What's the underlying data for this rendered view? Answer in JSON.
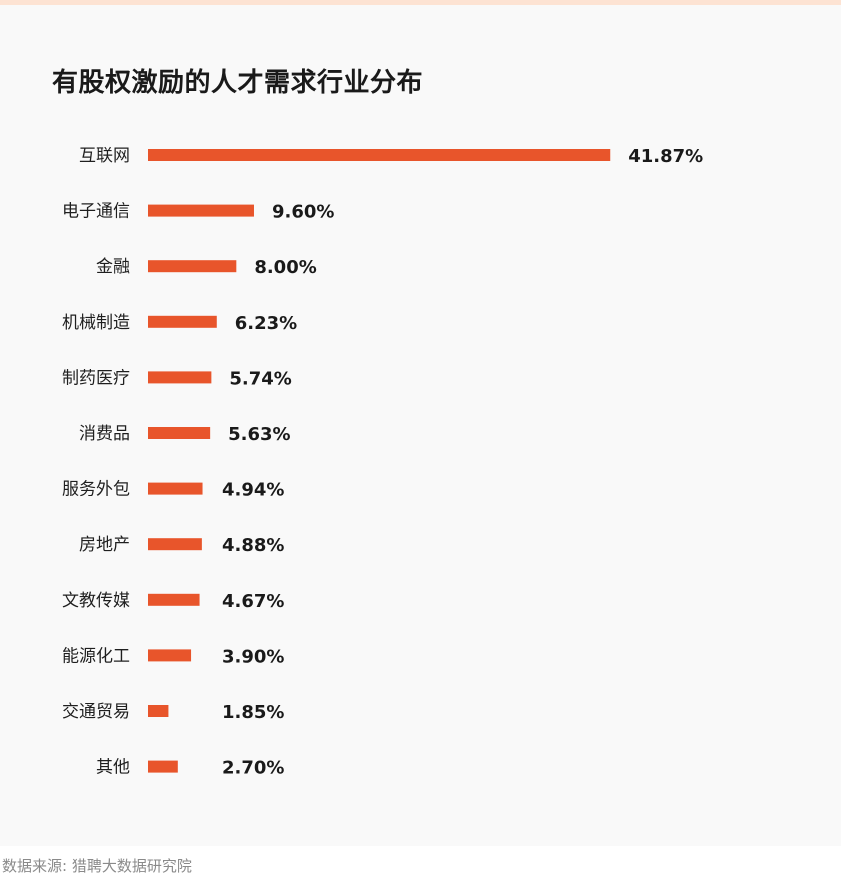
{
  "chart_data": {
    "type": "bar",
    "orientation": "horizontal",
    "title": "有股权激励的人才需求行业分布",
    "categories": [
      "互联网",
      "电子通信",
      "金融",
      "机械制造",
      "制药医疗",
      "消费品",
      "服务外包",
      "房地产",
      "文教传媒",
      "能源化工",
      "交通贸易",
      "其他"
    ],
    "values": [
      41.87,
      9.6,
      8.0,
      6.23,
      5.74,
      5.63,
      4.94,
      4.88,
      4.67,
      3.9,
      1.85,
      2.7
    ],
    "value_labels": [
      "41.87%",
      "9.60%",
      "8.00%",
      "6.23%",
      "5.74%",
      "5.63%",
      "4.94%",
      "4.88%",
      "4.67%",
      "3.90%",
      "1.85%",
      "2.70%"
    ],
    "bar_color": "#e8552b",
    "grid": false,
    "legend": "none"
  },
  "footer": {
    "source": "数据来源: 猎聘大数据研究院"
  },
  "colors": {
    "background": "#f9f9f9",
    "top_stripe": "#fde3d3"
  }
}
